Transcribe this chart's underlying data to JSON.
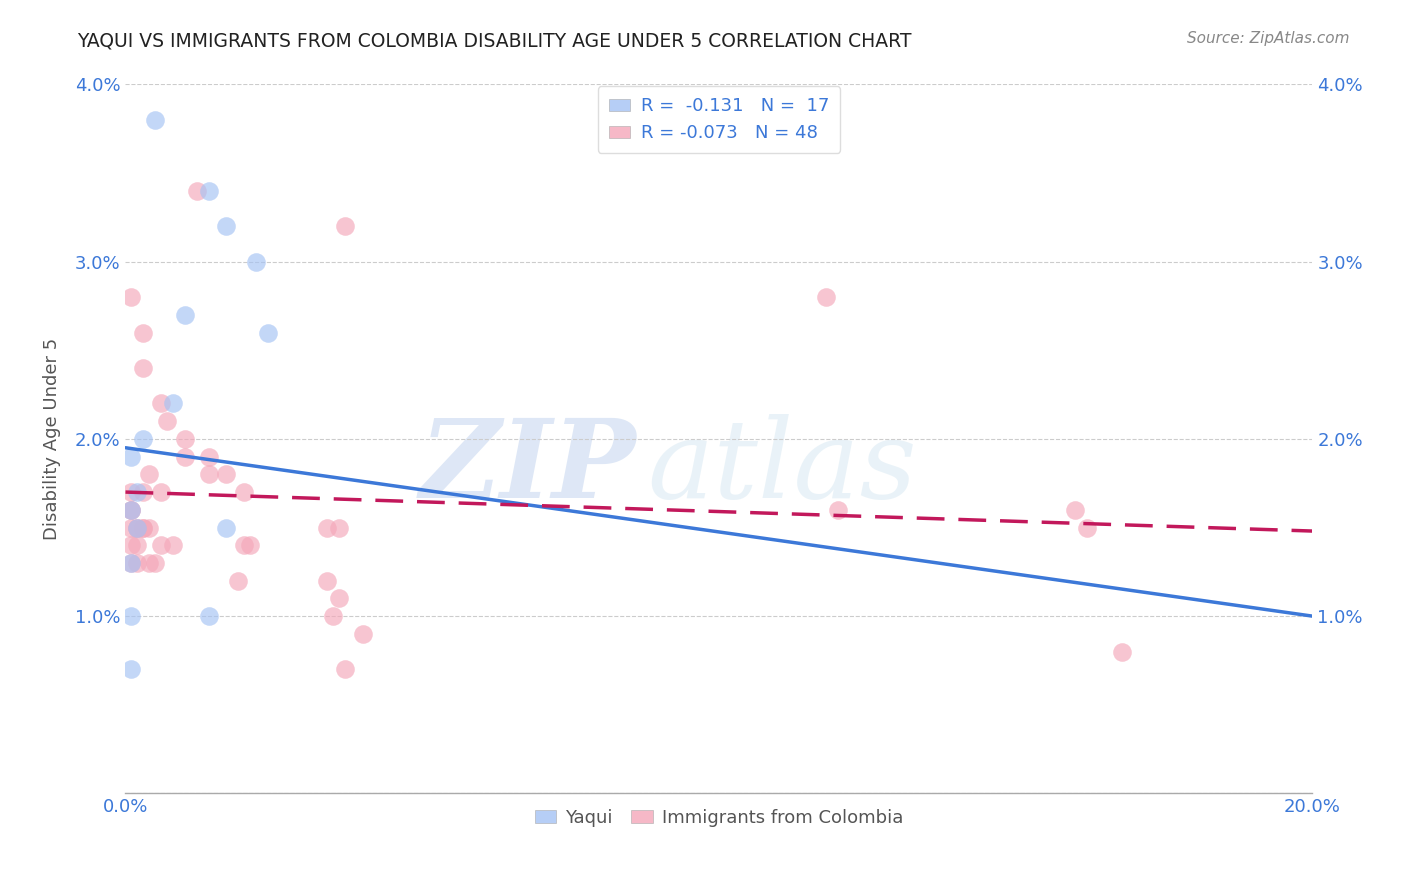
{
  "title": "YAQUI VS IMMIGRANTS FROM COLOMBIA DISABILITY AGE UNDER 5 CORRELATION CHART",
  "source": "Source: ZipAtlas.com",
  "ylabel": "Disability Age Under 5",
  "xlim": [
    0.0,
    0.2
  ],
  "ylim": [
    0.0,
    0.04
  ],
  "ytick_labels": [
    "",
    "1.0%",
    "2.0%",
    "3.0%",
    "4.0%"
  ],
  "xtick_labels": [
    "0.0%",
    "",
    "",
    "",
    "20.0%"
  ],
  "legend1_label": "R =  -0.131   N =  17",
  "legend2_label": "R = -0.073   N = 48",
  "legend_bottom_label1": "Yaqui",
  "legend_bottom_label2": "Immigrants from Colombia",
  "blue_color": "#a4c2f4",
  "pink_color": "#f4a7b9",
  "blue_fill_color": "#a4c2f4",
  "pink_fill_color": "#f4a7b9",
  "blue_line_color": "#3c78d8",
  "pink_line_color": "#c2185b",
  "grid_color": "#cccccc",
  "title_color": "#222222",
  "axis_label_color": "#3c78d8",
  "blue_scatter": [
    [
      0.005,
      0.038
    ],
    [
      0.014,
      0.034
    ],
    [
      0.017,
      0.032
    ],
    [
      0.022,
      0.03
    ],
    [
      0.01,
      0.027
    ],
    [
      0.024,
      0.026
    ],
    [
      0.008,
      0.022
    ],
    [
      0.003,
      0.02
    ],
    [
      0.001,
      0.019
    ],
    [
      0.002,
      0.017
    ],
    [
      0.001,
      0.016
    ],
    [
      0.002,
      0.015
    ],
    [
      0.017,
      0.015
    ],
    [
      0.001,
      0.013
    ],
    [
      0.001,
      0.01
    ],
    [
      0.014,
      0.01
    ],
    [
      0.001,
      0.007
    ]
  ],
  "pink_scatter": [
    [
      0.012,
      0.034
    ],
    [
      0.037,
      0.032
    ],
    [
      0.001,
      0.028
    ],
    [
      0.003,
      0.026
    ],
    [
      0.003,
      0.024
    ],
    [
      0.006,
      0.022
    ],
    [
      0.007,
      0.021
    ],
    [
      0.01,
      0.02
    ],
    [
      0.01,
      0.019
    ],
    [
      0.014,
      0.019
    ],
    [
      0.004,
      0.018
    ],
    [
      0.014,
      0.018
    ],
    [
      0.017,
      0.018
    ],
    [
      0.02,
      0.017
    ],
    [
      0.003,
      0.017
    ],
    [
      0.006,
      0.017
    ],
    [
      0.001,
      0.017
    ],
    [
      0.001,
      0.016
    ],
    [
      0.001,
      0.016
    ],
    [
      0.001,
      0.015
    ],
    [
      0.002,
      0.015
    ],
    [
      0.002,
      0.015
    ],
    [
      0.003,
      0.015
    ],
    [
      0.003,
      0.015
    ],
    [
      0.004,
      0.015
    ],
    [
      0.034,
      0.015
    ],
    [
      0.036,
      0.015
    ],
    [
      0.001,
      0.014
    ],
    [
      0.002,
      0.014
    ],
    [
      0.006,
      0.014
    ],
    [
      0.008,
      0.014
    ],
    [
      0.02,
      0.014
    ],
    [
      0.021,
      0.014
    ],
    [
      0.001,
      0.013
    ],
    [
      0.002,
      0.013
    ],
    [
      0.004,
      0.013
    ],
    [
      0.005,
      0.013
    ],
    [
      0.019,
      0.012
    ],
    [
      0.034,
      0.012
    ],
    [
      0.036,
      0.011
    ],
    [
      0.035,
      0.01
    ],
    [
      0.04,
      0.009
    ],
    [
      0.037,
      0.007
    ],
    [
      0.118,
      0.028
    ],
    [
      0.12,
      0.016
    ],
    [
      0.16,
      0.016
    ],
    [
      0.162,
      0.015
    ],
    [
      0.168,
      0.008
    ]
  ],
  "blue_line_x": [
    0.0,
    0.2
  ],
  "blue_line_y": [
    0.0195,
    0.01
  ],
  "pink_line_x": [
    0.0,
    0.2
  ],
  "pink_line_y": [
    0.017,
    0.0148
  ]
}
